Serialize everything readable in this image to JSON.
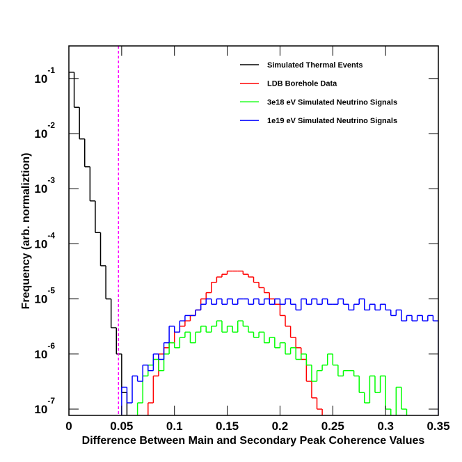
{
  "chart_data": {
    "type": "histogram",
    "x_label": "Difference Between Main and Secondary Peak Coherence Values",
    "y_label": "Frequency (arb. normaliztion)",
    "log_y": true,
    "legend": "top-right",
    "xlim": [
      0,
      0.35
    ],
    "ylim": [
      7.7e-08,
      0.39
    ],
    "xticks": [
      0,
      0.05,
      0.1,
      0.15,
      0.2,
      0.25,
      0.3,
      0.35
    ],
    "yticks": [
      {
        "value": 1e-07,
        "label": "10-7"
      },
      {
        "value": 1e-06,
        "label": "10-6"
      },
      {
        "value": 1e-05,
        "label": "10-5"
      },
      {
        "value": 0.0001,
        "label": "10-4"
      },
      {
        "value": 0.001,
        "label": "10-3"
      },
      {
        "value": 0.01,
        "label": "10-2"
      },
      {
        "value": 0.1,
        "label": "10-1"
      }
    ],
    "cut_line": {
      "value": 0.047,
      "color": "#ff00ff"
    },
    "bins": [
      0,
      0.005,
      0.01,
      0.015,
      0.02,
      0.025,
      0.03,
      0.035,
      0.04,
      0.045,
      0.05,
      0.055,
      0.06,
      0.065,
      0.07,
      0.075,
      0.08,
      0.085,
      0.09,
      0.095,
      0.1,
      0.105,
      0.11,
      0.115,
      0.12,
      0.125,
      0.13,
      0.135,
      0.14,
      0.145,
      0.15,
      0.155,
      0.16,
      0.165,
      0.17,
      0.175,
      0.18,
      0.185,
      0.19,
      0.195,
      0.2,
      0.205,
      0.21,
      0.215,
      0.22,
      0.225,
      0.23,
      0.235,
      0.24,
      0.245,
      0.25,
      0.255,
      0.26,
      0.265,
      0.27,
      0.275,
      0.28,
      0.285,
      0.29,
      0.295,
      0.3,
      0.305,
      0.31,
      0.315,
      0.32,
      0.325,
      0.33,
      0.335,
      0.34,
      0.345,
      0.35
    ],
    "series": [
      {
        "name": "Simulated Thermal Events",
        "color": "#000000",
        "values": [
          0.13,
          0.03,
          0.008,
          0.0025,
          0.0006,
          0.00016,
          4e-05,
          1e-05,
          3e-06,
          1e-06,
          2e-07,
          null,
          null,
          null,
          null,
          null,
          null,
          null,
          null,
          null,
          null,
          null,
          null,
          null,
          null,
          null,
          null,
          null,
          null,
          null,
          null,
          null,
          null,
          null,
          null,
          null,
          null,
          null,
          null,
          null,
          null,
          null,
          null,
          null,
          null,
          null,
          null,
          null,
          null,
          null,
          null,
          null,
          null,
          null,
          null,
          null,
          null,
          null,
          null,
          null,
          null,
          null,
          null,
          null,
          null,
          null,
          null,
          null,
          null,
          null
        ]
      },
      {
        "name": "LDB Borehole Data",
        "color": "#ff0000",
        "values": [
          null,
          null,
          null,
          null,
          null,
          null,
          null,
          null,
          null,
          null,
          null,
          null,
          null,
          null,
          null,
          1.3e-07,
          4e-07,
          1e-06,
          1.3e-06,
          1.6e-06,
          2.5e-06,
          3.2e-06,
          4e-06,
          5e-06,
          6.3e-06,
          1e-05,
          1.3e-05,
          2e-05,
          2.5e-05,
          2.8e-05,
          3.2e-05,
          3.2e-05,
          3.2e-05,
          2.8e-05,
          2.5e-05,
          2e-05,
          1.6e-05,
          1.3e-05,
          1e-05,
          8e-06,
          5e-06,
          3.2e-06,
          2e-06,
          1.3e-06,
          8e-07,
          3.2e-07,
          1.6e-07,
          1e-07,
          null,
          null,
          null,
          null,
          null,
          null,
          null,
          null,
          null,
          null,
          null,
          null,
          null,
          null,
          null,
          null,
          null,
          null,
          null,
          null,
          null,
          null
        ]
      },
      {
        "name": "3e18 eV Simulated Neutrino Signals",
        "color": "#00ff00",
        "values": [
          null,
          null,
          null,
          null,
          null,
          null,
          null,
          null,
          null,
          null,
          null,
          null,
          null,
          1.3e-07,
          4e-07,
          6.3e-07,
          8e-07,
          5e-07,
          1e-06,
          1.6e-06,
          1.3e-06,
          2e-06,
          2.5e-06,
          1.6e-06,
          2.5e-06,
          3.2e-06,
          2.5e-06,
          3.2e-06,
          4e-06,
          2.5e-06,
          3.2e-06,
          2.5e-06,
          4e-06,
          3.2e-06,
          2.5e-06,
          2e-06,
          2.5e-06,
          1.6e-06,
          2e-06,
          1.3e-06,
          1.6e-06,
          1e-06,
          1.3e-06,
          8e-07,
          1e-06,
          6.3e-07,
          3.2e-07,
          5e-07,
          6.3e-07,
          1e-06,
          6.3e-07,
          4e-07,
          5e-07,
          5e-07,
          4e-07,
          2e-07,
          1.3e-07,
          4e-07,
          2e-07,
          4e-07,
          1e-07,
          null,
          2.5e-07,
          1e-07,
          null,
          null,
          null,
          null,
          null,
          null
        ]
      },
      {
        "name": "1e19 eV Simulated Neutrino Signals",
        "color": "#0000ff",
        "values": [
          null,
          null,
          null,
          null,
          null,
          null,
          null,
          null,
          null,
          null,
          2.5e-07,
          1.3e-07,
          4e-07,
          3.2e-07,
          6.3e-07,
          5e-07,
          1e-06,
          8e-07,
          1.6e-06,
          3.2e-06,
          2.5e-06,
          4e-06,
          5e-06,
          5e-06,
          6.3e-06,
          8e-06,
          1e-05,
          8e-06,
          1e-05,
          8e-06,
          1e-05,
          8e-06,
          1e-05,
          1e-05,
          8e-06,
          1e-05,
          8e-06,
          1e-05,
          8e-06,
          1e-05,
          8e-06,
          1e-05,
          8e-06,
          6.3e-06,
          1e-05,
          8e-06,
          1e-05,
          8e-06,
          1e-05,
          8e-06,
          8e-06,
          1e-05,
          8e-06,
          6.3e-06,
          8e-06,
          1e-05,
          6.3e-06,
          8e-06,
          6.3e-06,
          8e-06,
          6.3e-06,
          5e-06,
          6.3e-06,
          4e-06,
          5e-06,
          4e-06,
          5e-06,
          4e-06,
          5e-06,
          4e-06
        ]
      }
    ]
  }
}
